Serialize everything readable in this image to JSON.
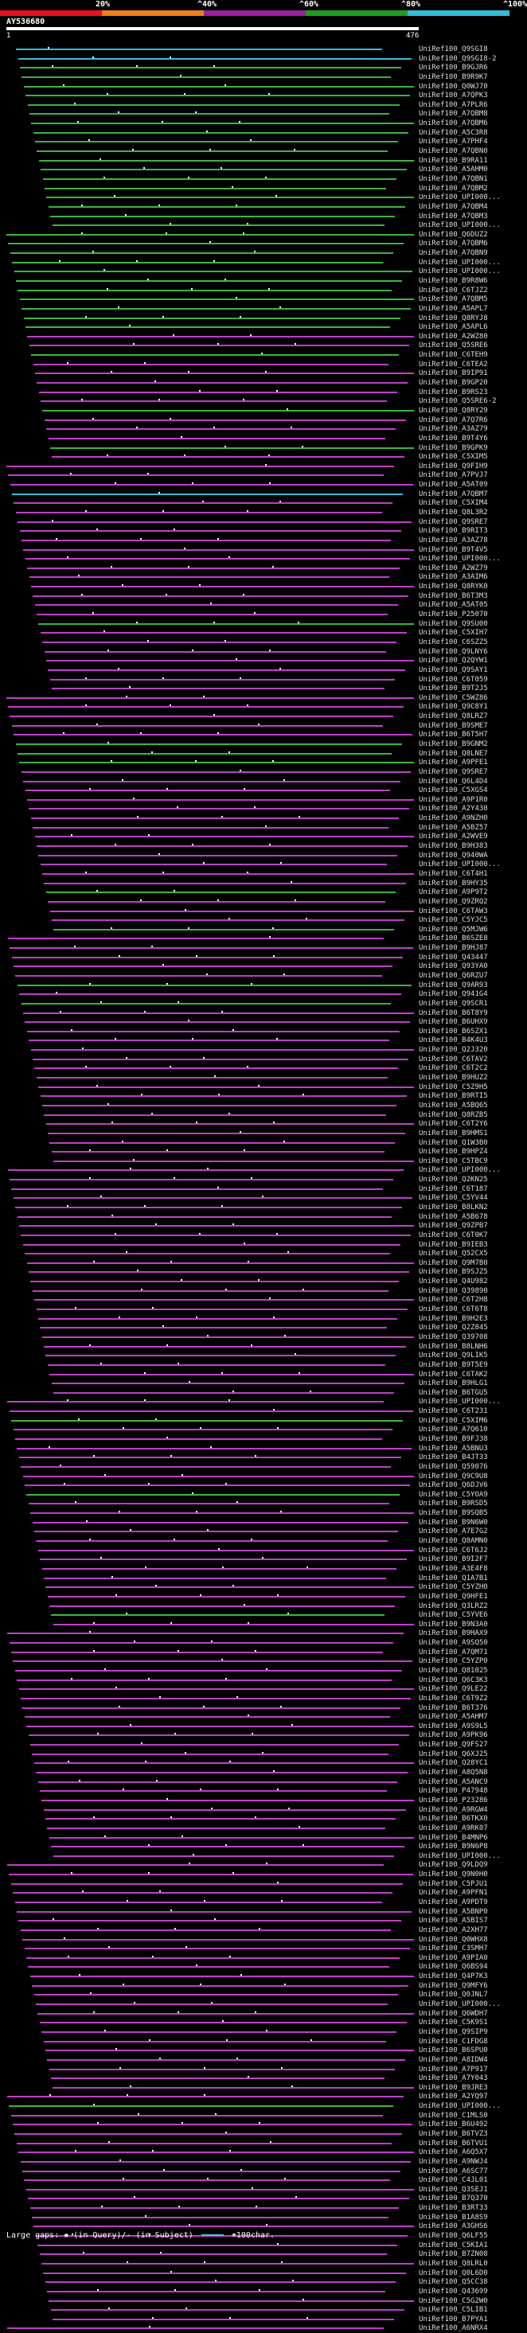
{
  "legend": {
    "labels": [
      "20%",
      "^40%",
      "^60%",
      "^80%",
      "^100%"
    ],
    "colors": [
      "#e8101e",
      "#f07d1c",
      "#9c1fa0",
      "#1e9c1e",
      "#33bcd8"
    ]
  },
  "query": {
    "name": "AY536680",
    "start": "1",
    "end": "476"
  },
  "hits": [
    {
      "id": "UniRef100_Q9SGI8",
      "color": "#33bcd8"
    },
    {
      "id": "UniRef100_Q9SGI8-2",
      "color": "#33bcd8"
    },
    {
      "id": "UniRef100_B9GJR6",
      "color": "#3db53d"
    },
    {
      "id": "UniRef100_B9R9K7",
      "color": "#3db53d"
    },
    {
      "id": "UniRef100_Q0WJ70",
      "color": "#3db53d"
    },
    {
      "id": "UniRef100_A7QPK3",
      "color": "#3db53d"
    },
    {
      "id": "UniRef100_A7PLR6",
      "color": "#3db53d"
    },
    {
      "id": "UniRef100_A7QBM8",
      "color": "#3db53d"
    },
    {
      "id": "UniRef100_A7QBM6",
      "color": "#3db53d"
    },
    {
      "id": "UniRef100_A5C3R8",
      "color": "#3db53d"
    },
    {
      "id": "UniRef100_A7PHF4",
      "color": "#3db53d"
    },
    {
      "id": "UniRef100_A7QBN0",
      "color": "#3db53d"
    },
    {
      "id": "UniRef100_B9RA11",
      "color": "#3db53d"
    },
    {
      "id": "UniRef100_A5AHM0",
      "color": "#3db53d"
    },
    {
      "id": "UniRef100_A7QBN1",
      "color": "#3db53d"
    },
    {
      "id": "UniRef100_A7QBM2",
      "color": "#3db53d"
    },
    {
      "id": "UniRef100_UPI000...",
      "color": "#3db53d"
    },
    {
      "id": "UniRef100_A7QBM4",
      "color": "#3db53d"
    },
    {
      "id": "UniRef100_A7QBM3",
      "color": "#3db53d"
    },
    {
      "id": "UniRef100_UPI000...",
      "color": "#3db53d"
    },
    {
      "id": "UniRef100_Q6DUZ2",
      "color": "#3db53d"
    },
    {
      "id": "UniRef100_A7QBM6",
      "color": "#3db53d"
    },
    {
      "id": "UniRef100_A7QBN9",
      "color": "#3db53d"
    },
    {
      "id": "UniRef100_UPI000...",
      "color": "#3db53d"
    },
    {
      "id": "UniRef100_UPI000...",
      "color": "#3db53d"
    },
    {
      "id": "UniRef100_B9R8W6",
      "color": "#3db53d"
    },
    {
      "id": "UniRef100_C6TJZ2",
      "color": "#3db53d"
    },
    {
      "id": "UniRef100_A7QBM5",
      "color": "#3db53d"
    },
    {
      "id": "UniRef100_A5APL7",
      "color": "#3db53d"
    },
    {
      "id": "UniRef100_Q8RYJ8",
      "color": "#3db53d"
    },
    {
      "id": "UniRef100_A5APL6",
      "color": "#3db53d"
    },
    {
      "id": "UniRef100_A2WZ80",
      "color": "#c03ec8"
    },
    {
      "id": "UniRef100_Q5SRE6",
      "color": "#c03ec8"
    },
    {
      "id": "UniRef100_C6TEH9",
      "color": "#3db53d"
    },
    {
      "id": "UniRef100_C6TEA2",
      "color": "#c03ec8"
    },
    {
      "id": "UniRef100_B9IP91",
      "color": "#c03ec8"
    },
    {
      "id": "UniRef100_B9GP20",
      "color": "#c03ec8"
    },
    {
      "id": "UniRef100_B9RS23",
      "color": "#c03ec8"
    },
    {
      "id": "UniRef100_Q5SRE6-2",
      "color": "#c03ec8"
    },
    {
      "id": "UniRef100_Q8RY29",
      "color": "#3db53d"
    },
    {
      "id": "UniRef100_A7Q7R6",
      "color": "#c03ec8"
    },
    {
      "id": "UniRef100_A3AZ79",
      "color": "#c03ec8"
    },
    {
      "id": "UniRef100_B9T4Y6",
      "color": "#c03ec8"
    },
    {
      "id": "UniRef100_B9GPK9",
      "color": "#3db53d"
    },
    {
      "id": "UniRef100_C5XIM5",
      "color": "#c03ec8"
    },
    {
      "id": "UniRef100_Q9FIH9",
      "color": "#c03ec8"
    },
    {
      "id": "UniRef100_A7PVJ7",
      "color": "#c03ec8"
    },
    {
      "id": "UniRef100_A5AT09",
      "color": "#c03ec8"
    },
    {
      "id": "UniRef100_A7QBM7",
      "color": "#33bcd8"
    },
    {
      "id": "UniRef100_C5XIM4",
      "color": "#c03ec8"
    },
    {
      "id": "UniRef100_Q8L3R2",
      "color": "#c03ec8"
    },
    {
      "id": "UniRef100_Q9SRE7",
      "color": "#c03ec8"
    },
    {
      "id": "UniRef100_B9RIT3",
      "color": "#c03ec8"
    },
    {
      "id": "UniRef100_A3AZ78",
      "color": "#c03ec8"
    },
    {
      "id": "UniRef100_B9T4V5",
      "color": "#c03ec8"
    },
    {
      "id": "UniRef100_UPI000...",
      "color": "#c03ec8"
    },
    {
      "id": "UniRef100_A2WZ79",
      "color": "#c03ec8"
    },
    {
      "id": "UniRef100_A3AIM6",
      "color": "#c03ec8"
    },
    {
      "id": "UniRef100_Q8RYK0",
      "color": "#c03ec8"
    },
    {
      "id": "UniRef100_B6T3M3",
      "color": "#c03ec8"
    },
    {
      "id": "UniRef100_A5AT05",
      "color": "#c03ec8"
    },
    {
      "id": "UniRef100_P25070",
      "color": "#c03ec8"
    },
    {
      "id": "UniRef100_Q9SU00",
      "color": "#3db53d"
    },
    {
      "id": "UniRef100_C5XIH7",
      "color": "#c03ec8"
    },
    {
      "id": "UniRef100_C6SZZ5",
      "color": "#c03ec8"
    },
    {
      "id": "UniRef100_Q9LNY6",
      "color": "#c03ec8"
    },
    {
      "id": "UniRef100_Q2QYW1",
      "color": "#c03ec8"
    },
    {
      "id": "UniRef100_Q9SAY1",
      "color": "#c03ec8"
    },
    {
      "id": "UniRef100_C6T059",
      "color": "#c03ec8"
    },
    {
      "id": "UniRef100_B9T2J5",
      "color": "#c03ec8"
    },
    {
      "id": "UniRef100_C5WZ86",
      "color": "#c03ec8"
    },
    {
      "id": "UniRef100_Q9C8Y1",
      "color": "#c03ec8"
    },
    {
      "id": "UniRef100_Q8LRZ7",
      "color": "#c03ec8"
    },
    {
      "id": "UniRef100_B9SME7",
      "color": "#c03ec8"
    },
    {
      "id": "UniRef100_B6T5H7",
      "color": "#c03ec8"
    },
    {
      "id": "UniRef100_B9GNM2",
      "color": "#3db53d"
    },
    {
      "id": "UniRef100_Q8LNE7",
      "color": "#3db53d"
    },
    {
      "id": "UniRef100_A9PFE1",
      "color": "#3db53d"
    },
    {
      "id": "UniRef100_Q9SRE7",
      "color": "#c03ec8"
    },
    {
      "id": "UniRef100_Q6L4D4",
      "color": "#c03ec8"
    },
    {
      "id": "UniRef100_C5XGS4",
      "color": "#c03ec8"
    },
    {
      "id": "UniRef100_A9P1R0",
      "color": "#c03ec8"
    },
    {
      "id": "UniRef100_A2Y430",
      "color": "#c03ec8"
    },
    {
      "id": "UniRef100_A9NZH0",
      "color": "#c03ec8"
    },
    {
      "id": "UniRef100_A5BZ57",
      "color": "#c03ec8"
    },
    {
      "id": "UniRef100_A2WVE9",
      "color": "#c03ec8"
    },
    {
      "id": "UniRef100_B9H383",
      "color": "#c03ec8"
    },
    {
      "id": "UniRef100_Q940WA",
      "color": "#c03ec8"
    },
    {
      "id": "UniRef100_UPI000...",
      "color": "#c03ec8"
    },
    {
      "id": "UniRef100_C6T4H1",
      "color": "#c03ec8"
    },
    {
      "id": "UniRef100_B9HY35",
      "color": "#c03ec8"
    },
    {
      "id": "UniRef100_A9P9T2",
      "color": "#3db53d"
    },
    {
      "id": "UniRef100_Q9ZRQ2",
      "color": "#c03ec8"
    },
    {
      "id": "UniRef100_C6TAW3",
      "color": "#c03ec8"
    },
    {
      "id": "UniRef100_C5YJC5",
      "color": "#c03ec8"
    },
    {
      "id": "UniRef100_Q5MJW6",
      "color": "#3db53d"
    },
    {
      "id": "UniRef100_B6SZE8",
      "color": "#c03ec8"
    },
    {
      "id": "UniRef100_B9HJ87",
      "color": "#c03ec8"
    },
    {
      "id": "UniRef100_Q43447",
      "color": "#c03ec8"
    },
    {
      "id": "UniRef100_Q93YA0",
      "color": "#c03ec8"
    },
    {
      "id": "UniRef100_Q6RZU7",
      "color": "#c03ec8"
    },
    {
      "id": "UniRef100_Q9AR93",
      "color": "#3db53d"
    },
    {
      "id": "UniRef100_Q941G4",
      "color": "#c03ec8"
    },
    {
      "id": "UniRef100_Q9SCR1",
      "color": "#3db53d"
    },
    {
      "id": "UniRef100_B6T8Y9",
      "color": "#c03ec8"
    },
    {
      "id": "UniRef100_B6UHX9",
      "color": "#c03ec8"
    },
    {
      "id": "UniRef100_B6SZX1",
      "color": "#c03ec8"
    },
    {
      "id": "UniRef100_B4K4U3",
      "color": "#c03ec8"
    },
    {
      "id": "UniRef100_Q2J320",
      "color": "#c03ec8"
    },
    {
      "id": "UniRef100_C6TAV2",
      "color": "#c03ec8"
    },
    {
      "id": "UniRef100_C6T2C2",
      "color": "#c03ec8"
    },
    {
      "id": "UniRef100_B9HUZ2",
      "color": "#c03ec8"
    },
    {
      "id": "UniRef100_C5Z9H5",
      "color": "#c03ec8"
    },
    {
      "id": "UniRef100_B9RTI5",
      "color": "#c03ec8"
    },
    {
      "id": "UniRef100_A5BQ65",
      "color": "#c03ec8"
    },
    {
      "id": "UniRef100_Q8RZB5",
      "color": "#c03ec8"
    },
    {
      "id": "UniRef100_C6T2Y6",
      "color": "#c03ec8"
    },
    {
      "id": "UniRef100_B9HMS1",
      "color": "#c03ec8"
    },
    {
      "id": "UniRef100_Q1W3B0",
      "color": "#c03ec8"
    },
    {
      "id": "UniRef100_B9HPZ4",
      "color": "#c03ec8"
    },
    {
      "id": "UniRef100_C5TBC9",
      "color": "#c03ec8"
    },
    {
      "id": "UniRef100_UPI000...",
      "color": "#c03ec8"
    },
    {
      "id": "UniRef100_Q2KN25",
      "color": "#c03ec8"
    },
    {
      "id": "UniRef100_C6T187",
      "color": "#c03ec8"
    },
    {
      "id": "UniRef100_C5YV44",
      "color": "#c03ec8"
    },
    {
      "id": "UniRef100_B8LKN2",
      "color": "#c03ec8"
    },
    {
      "id": "UniRef100_A5B678",
      "color": "#c03ec8"
    },
    {
      "id": "UniRef100_Q9ZPB7",
      "color": "#c03ec8"
    },
    {
      "id": "UniRef100_C6T0K7",
      "color": "#c03ec8"
    },
    {
      "id": "UniRef100_B9IEB3",
      "color": "#c03ec8"
    },
    {
      "id": "UniRef100_Q52CX5",
      "color": "#c03ec8"
    },
    {
      "id": "UniRef100_Q9M7B0",
      "color": "#c03ec8"
    },
    {
      "id": "UniRef100_B9SJZ5",
      "color": "#c03ec8"
    },
    {
      "id": "UniRef100_Q4U982",
      "color": "#c03ec8"
    },
    {
      "id": "UniRef100_Q39890",
      "color": "#c03ec8"
    },
    {
      "id": "UniRef100_C6T2H8",
      "color": "#c03ec8"
    },
    {
      "id": "UniRef100_C6T6T8",
      "color": "#c03ec8"
    },
    {
      "id": "UniRef100_B9H2E3",
      "color": "#c03ec8"
    },
    {
      "id": "UniRef100_Q2Z845",
      "color": "#c03ec8"
    },
    {
      "id": "UniRef100_Q39708",
      "color": "#c03ec8"
    },
    {
      "id": "UniRef100_B8LNH6",
      "color": "#c03ec8"
    },
    {
      "id": "UniRef100_Q9LIK5",
      "color": "#c03ec8"
    },
    {
      "id": "UniRef100_B9T5E9",
      "color": "#c03ec8"
    },
    {
      "id": "UniRef100_C6TAK2",
      "color": "#c03ec8"
    },
    {
      "id": "UniRef100_B9HLG1",
      "color": "#c03ec8"
    },
    {
      "id": "UniRef100_B6TGU5",
      "color": "#c03ec8"
    },
    {
      "id": "UniRef100_UPI000...",
      "color": "#c03ec8"
    },
    {
      "id": "UniRef100_C6T231",
      "color": "#c03ec8"
    },
    {
      "id": "UniRef100_C5XIM6",
      "color": "#3db53d"
    },
    {
      "id": "UniRef100_A7Q610",
      "color": "#c03ec8"
    },
    {
      "id": "UniRef100_B9FJ38",
      "color": "#c03ec8"
    },
    {
      "id": "UniRef100_A5BNU3",
      "color": "#c03ec8"
    },
    {
      "id": "UniRef100_B4JT33",
      "color": "#c03ec8"
    },
    {
      "id": "UniRef100_Q59076",
      "color": "#c03ec8"
    },
    {
      "id": "UniRef100_Q9C9U8",
      "color": "#c03ec8"
    },
    {
      "id": "UniRef100_Q6DJV6",
      "color": "#c03ec8"
    },
    {
      "id": "UniRef100_C5YOA9",
      "color": "#3db53d"
    },
    {
      "id": "UniRef100_B9RSD5",
      "color": "#c03ec8"
    },
    {
      "id": "UniRef100_B9SQB5",
      "color": "#c03ec8"
    },
    {
      "id": "UniRef100_B9N6W0",
      "color": "#c03ec8"
    },
    {
      "id": "UniRef100_A7E7G2",
      "color": "#c03ec8"
    },
    {
      "id": "UniRef100_Q8AMN0",
      "color": "#c03ec8"
    },
    {
      "id": "UniRef100_C6T6J2",
      "color": "#c03ec8"
    },
    {
      "id": "UniRef100_B9I2F7",
      "color": "#c03ec8"
    },
    {
      "id": "UniRef100_A3E4F8",
      "color": "#c03ec8"
    },
    {
      "id": "UniRef100_Q1A7B1",
      "color": "#c03ec8"
    },
    {
      "id": "UniRef100_C5YZH0",
      "color": "#c03ec8"
    },
    {
      "id": "UniRef100_Q9HFE1",
      "color": "#c03ec8"
    },
    {
      "id": "UniRef100_Q3LRZ2",
      "color": "#c03ec8"
    },
    {
      "id": "UniRef100_C5YVE6",
      "color": "#3db53d"
    },
    {
      "id": "UniRef100_B9N3A0",
      "color": "#c03ec8"
    },
    {
      "id": "UniRef100_B9HAX9",
      "color": "#c03ec8"
    },
    {
      "id": "UniRef100_A9SQ50",
      "color": "#c03ec8"
    },
    {
      "id": "UniRef100_A7QM71",
      "color": "#c03ec8"
    },
    {
      "id": "UniRef100_C5YZP0",
      "color": "#c03ec8"
    },
    {
      "id": "UniRef100_Q81025",
      "color": "#c03ec8"
    },
    {
      "id": "UniRef100_Q6C3K3",
      "color": "#c03ec8"
    },
    {
      "id": "UniRef100_Q9LE22",
      "color": "#c03ec8"
    },
    {
      "id": "UniRef100_C6T9Z2",
      "color": "#c03ec8"
    },
    {
      "id": "UniRef100_B6T376",
      "color": "#c03ec8"
    },
    {
      "id": "UniRef100_A5AHM7",
      "color": "#c03ec8"
    },
    {
      "id": "UniRef100_A9S9L5",
      "color": "#c03ec8"
    },
    {
      "id": "UniRef100_A9PK96",
      "color": "#c03ec8"
    },
    {
      "id": "UniRef100_Q9FS27",
      "color": "#c03ec8"
    },
    {
      "id": "UniRef100_Q6XJ25",
      "color": "#c03ec8"
    },
    {
      "id": "UniRef100_Q28YC1",
      "color": "#c03ec8"
    },
    {
      "id": "UniRef100_A8Q5N8",
      "color": "#c03ec8"
    },
    {
      "id": "UniRef100_A5ANC9",
      "color": "#c03ec8"
    },
    {
      "id": "UniRef100_P47948",
      "color": "#c03ec8"
    },
    {
      "id": "UniRef100_P23286",
      "color": "#c03ec8"
    },
    {
      "id": "UniRef100_A9RGW4",
      "color": "#c03ec8"
    },
    {
      "id": "UniRef100_B6TKX0",
      "color": "#c03ec8"
    },
    {
      "id": "UniRef100_A9RK07",
      "color": "#c03ec8"
    },
    {
      "id": "UniRef100_B4MNP6",
      "color": "#c03ec8"
    },
    {
      "id": "UniRef100_B9N6P8",
      "color": "#c03ec8"
    },
    {
      "id": "UniRef100_UPI000...",
      "color": "#c03ec8"
    },
    {
      "id": "UniRef100_Q9LDQ9",
      "color": "#c03ec8"
    },
    {
      "id": "UniRef100_Q9N0H0",
      "color": "#c03ec8"
    },
    {
      "id": "UniRef100_C5PJU1",
      "color": "#c03ec8"
    },
    {
      "id": "UniRef100_A9PFN1",
      "color": "#c03ec8"
    },
    {
      "id": "UniRef100_A9PDT9",
      "color": "#c03ec8"
    },
    {
      "id": "UniRef100_A5BNP0",
      "color": "#c03ec8"
    },
    {
      "id": "UniRef100_A5BIS7",
      "color": "#c03ec8"
    },
    {
      "id": "UniRef100_A2XH77",
      "color": "#c03ec8"
    },
    {
      "id": "UniRef100_Q0WHX8",
      "color": "#c03ec8"
    },
    {
      "id": "UniRef100_C3SMH7",
      "color": "#c03ec8"
    },
    {
      "id": "UniRef100_A9PIA0",
      "color": "#c03ec8"
    },
    {
      "id": "UniRef100_Q6BS94",
      "color": "#c03ec8"
    },
    {
      "id": "UniRef100_Q4P7K3",
      "color": "#c03ec8"
    },
    {
      "id": "UniRef100_Q9MFY6",
      "color": "#c03ec8"
    },
    {
      "id": "UniRef100_Q0JNL7",
      "color": "#c03ec8"
    },
    {
      "id": "UniRef100_UPI000...",
      "color": "#c03ec8"
    },
    {
      "id": "UniRef100_Q6WDH7",
      "color": "#c03ec8"
    },
    {
      "id": "UniRef100_C5K9S1",
      "color": "#c03ec8"
    },
    {
      "id": "UniRef100_Q9SIP9",
      "color": "#c03ec8"
    },
    {
      "id": "UniRef100_C1FDG8",
      "color": "#c03ec8"
    },
    {
      "id": "UniRef100_B6SPU0",
      "color": "#c03ec8"
    },
    {
      "id": "UniRef100_A8IDW4",
      "color": "#c03ec8"
    },
    {
      "id": "UniRef100_A7P917",
      "color": "#c03ec8"
    },
    {
      "id": "UniRef100_A7Y043",
      "color": "#c03ec8"
    },
    {
      "id": "UniRef100_B9JRE3",
      "color": "#c03ec8"
    },
    {
      "id": "UniRef100_A2YQ97",
      "color": "#c03ec8"
    },
    {
      "id": "UniRef100_UPI000...",
      "color": "#3db53d"
    },
    {
      "id": "UniRef100_C1MLS0",
      "color": "#c03ec8"
    },
    {
      "id": "UniRef100_B6U492",
      "color": "#c03ec8"
    },
    {
      "id": "UniRef100_B6TVZ3",
      "color": "#c03ec8"
    },
    {
      "id": "UniRef100_B6TVU1",
      "color": "#c03ec8"
    },
    {
      "id": "UniRef100_A6Q5X7",
      "color": "#c03ec8"
    },
    {
      "id": "UniRef100_A9NWJ4",
      "color": "#c03ec8"
    },
    {
      "id": "UniRef100_A6SC77",
      "color": "#c03ec8"
    },
    {
      "id": "UniRef100_C4JL01",
      "color": "#c03ec8"
    },
    {
      "id": "UniRef100_Q3SEJ1",
      "color": "#c03ec8"
    },
    {
      "id": "UniRef100_B7Q370",
      "color": "#c03ec8"
    },
    {
      "id": "UniRef100_B3RT33",
      "color": "#c03ec8"
    },
    {
      "id": "UniRef100_B1A8S9",
      "color": "#c03ec8"
    },
    {
      "id": "UniRef100_A3GHS6",
      "color": "#c03ec8"
    },
    {
      "id": "UniRef100_Q6LF55",
      "color": "#c03ec8"
    },
    {
      "id": "UniRef100_C5KIA1",
      "color": "#c03ec8"
    },
    {
      "id": "UniRef100_B7ZN08",
      "color": "#c03ec8"
    },
    {
      "id": "UniRef100_Q8LRL0",
      "color": "#c03ec8"
    },
    {
      "id": "UniRef100_Q0L6D0",
      "color": "#c03ec8"
    },
    {
      "id": "UniRef100_Q5CC38",
      "color": "#c03ec8"
    },
    {
      "id": "UniRef100_Q43699",
      "color": "#c03ec8"
    },
    {
      "id": "UniRef100_C5G2W0",
      "color": "#c03ec8"
    },
    {
      "id": "UniRef100_C5LIB1",
      "color": "#c03ec8"
    },
    {
      "id": "UniRef100_B7PYA1",
      "color": "#c03ec8"
    },
    {
      "id": "UniRef100_A6NRX4",
      "color": "#c03ec8"
    }
  ],
  "footer": {
    "text": "Large gaps: ▪ (in Query)/- (in Subject)",
    "scale": "=100char."
  }
}
